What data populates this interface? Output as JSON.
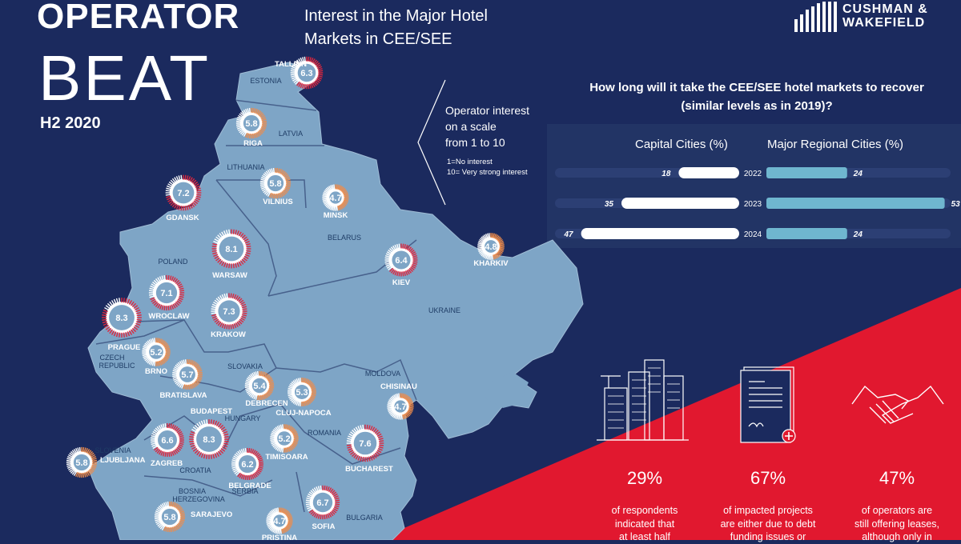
{
  "header": {
    "title_line1": "OPERATOR",
    "title_line2": "BEAT",
    "period": "H2 2020",
    "subtitle_line1": "Interest in the Major Hotel",
    "subtitle_line2": "Markets in CEE/SEE",
    "brand_line1": "CUSHMAN &",
    "brand_line2": "WAKEFIELD"
  },
  "legend": {
    "line1": "Operator interest",
    "line2": "on a scale",
    "line3": "from 1 to 10",
    "note1": "1=No interest",
    "note2": "10= Very strong interest"
  },
  "colors": {
    "background": "#1b2a5e",
    "land": "#7ea5c6",
    "high_interest": "#e0263d",
    "mid_interest": "#ef8c4b",
    "accent_red": "#e1182f",
    "regional_bar": "#6fb6cf",
    "capital_bar": "#ffffff"
  },
  "countries": [
    {
      "id": "estonia",
      "name": "ESTONIA"
    },
    {
      "id": "latvia",
      "name": "LATVIA"
    },
    {
      "id": "lithuania",
      "name": "LITHUANIA"
    },
    {
      "id": "belarus",
      "name": "BELARUS"
    },
    {
      "id": "poland",
      "name": "POLAND"
    },
    {
      "id": "ukraine",
      "name": "UKRAINE"
    },
    {
      "id": "czech1",
      "name": "CZECH"
    },
    {
      "id": "czech2",
      "name": "REPUBLIC"
    },
    {
      "id": "slovakia",
      "name": "SLOVAKIA"
    },
    {
      "id": "hungary",
      "name": "HUNGARY"
    },
    {
      "id": "moldova",
      "name": "MOLDOVA"
    },
    {
      "id": "romania",
      "name": "ROMANIA"
    },
    {
      "id": "slovenia",
      "name": "SLOVENIA"
    },
    {
      "id": "croatia",
      "name": "CROATIA"
    },
    {
      "id": "bosnia1",
      "name": "BOSNIA"
    },
    {
      "id": "bosnia2",
      "name": "HERZEGOVINA"
    },
    {
      "id": "serbia",
      "name": "SERBIA"
    },
    {
      "id": "bulgaria",
      "name": "BULGARIA"
    }
  ],
  "chart_data": [
    {
      "type": "scatter",
      "title": "Operator interest on a scale from 1 to 10",
      "scale": [
        1,
        10
      ],
      "cities": [
        {
          "id": "tallinn",
          "city": "TALLINN",
          "score": 6.3
        },
        {
          "id": "riga",
          "city": "RIGA",
          "score": 5.8
        },
        {
          "id": "vilnius",
          "city": "VILNIUS",
          "score": 5.8
        },
        {
          "id": "minsk",
          "city": "MINSK",
          "score": 4.7
        },
        {
          "id": "gdansk",
          "city": "GDANSK",
          "score": 7.2
        },
        {
          "id": "warsaw",
          "city": "WARSAW",
          "score": 8.1
        },
        {
          "id": "kiev",
          "city": "KIEV",
          "score": 6.4
        },
        {
          "id": "kharkiv",
          "city": "KHARKIV",
          "score": 4.8
        },
        {
          "id": "wroclaw",
          "city": "WROCLAW",
          "score": 7.1
        },
        {
          "id": "krakow",
          "city": "KRAKOW",
          "score": 7.3
        },
        {
          "id": "prague",
          "city": "PRAGUE",
          "score": 8.3
        },
        {
          "id": "brno",
          "city": "BRNO",
          "score": 5.2
        },
        {
          "id": "bratislava",
          "city": "BRATISLAVA",
          "score": 5.7
        },
        {
          "id": "debrecen",
          "city": "DEBRECEN",
          "score": 5.4
        },
        {
          "id": "cluj",
          "city": "CLUJ-NAPOCA",
          "score": 5.3
        },
        {
          "id": "chisinau",
          "city": "CHISINAU",
          "score": 4.7
        },
        {
          "id": "budapest",
          "city": "BUDAPEST",
          "score": 8.3
        },
        {
          "id": "zagreb",
          "city": "ZAGREB",
          "score": 6.6
        },
        {
          "id": "ljubljana",
          "city": "LJUBLJANA",
          "score": 5.8
        },
        {
          "id": "timisoara",
          "city": "TIMISOARA",
          "score": 5.2
        },
        {
          "id": "bucharest",
          "city": "BUCHAREST",
          "score": 7.6
        },
        {
          "id": "belgrade",
          "city": "BELGRADE",
          "score": 6.2
        },
        {
          "id": "sarajevo",
          "city": "SARAJEVO",
          "score": 5.8
        },
        {
          "id": "sofia",
          "city": "SOFIA",
          "score": 6.7
        },
        {
          "id": "pristina",
          "city": "PRISTINA",
          "score": 4.7
        }
      ]
    },
    {
      "type": "bar",
      "title": "How long will it take the CEE/SEE hotel markets to recover (similar levels as in 2019)?",
      "title_line1": "How long will it take the CEE/SEE hotel markets to recover",
      "title_line2": "(similar levels as in 2019)?",
      "categories": [
        "2022",
        "2023",
        "2024"
      ],
      "series": [
        {
          "name": "Capital Cities (%)",
          "values": [
            18,
            35,
            47
          ]
        },
        {
          "name": "Major Regional Cities (%)",
          "values": [
            24,
            53,
            24
          ]
        }
      ],
      "ylim": [
        0,
        100
      ]
    }
  ],
  "stats": [
    {
      "pct": "29%",
      "line1": "of respondents",
      "line2": "indicated that",
      "line3": "at least half"
    },
    {
      "pct": "67%",
      "line1": "of impacted projects",
      "line2": "are either due to debt",
      "line3": "funding issues or"
    },
    {
      "pct": "47%",
      "line1": "of operators are",
      "line2": "still offering leases,",
      "line3": "although only in"
    }
  ]
}
